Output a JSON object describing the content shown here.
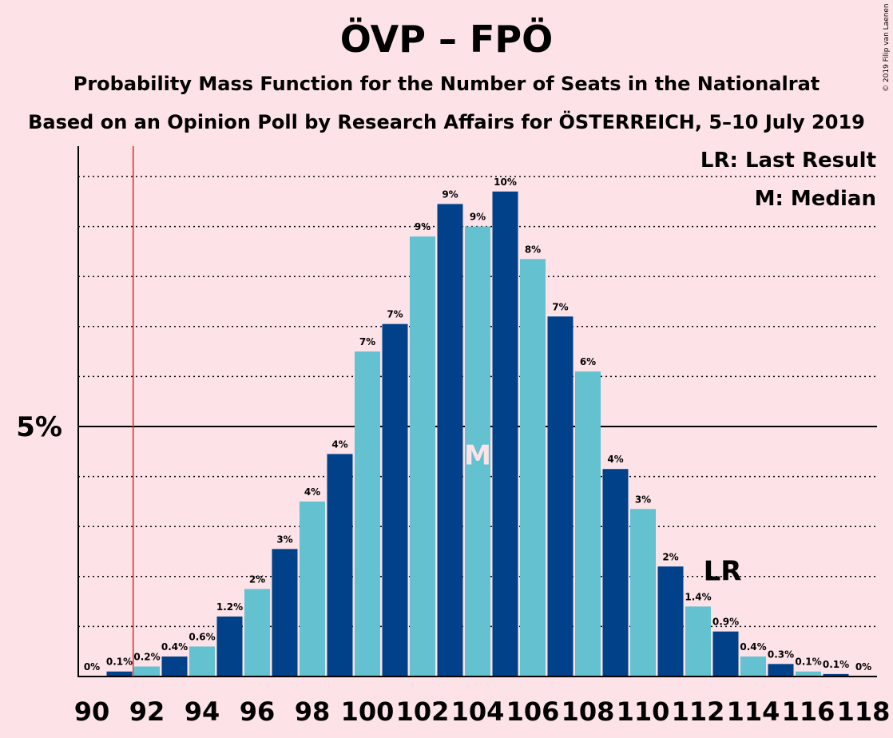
{
  "chart_data": {
    "type": "bar",
    "title": "ÖVP – FPÖ",
    "subtitle1": "Probability Mass Function for the Number of Seats in the Nationalrat",
    "subtitle2": "Based on an Opinion Poll by Research Affairs for ÖSTERREICH, 5–10 July 2019",
    "copyright": "© 2019 Filip van Laenen",
    "legend": {
      "lr": "LR: Last Result",
      "m": "M: Median"
    },
    "y_tick_label": "5%",
    "y_tick_value": 5,
    "ylim": [
      0,
      10.5
    ],
    "grid": true,
    "x": [
      90,
      91,
      92,
      93,
      94,
      95,
      96,
      97,
      98,
      99,
      100,
      101,
      102,
      103,
      104,
      105,
      106,
      107,
      108,
      109,
      110,
      111,
      112,
      113,
      114,
      115,
      116,
      117,
      118
    ],
    "x_tick_labels": [
      "90",
      "92",
      "94",
      "96",
      "98",
      "100",
      "102",
      "104",
      "106",
      "108",
      "110",
      "112",
      "114",
      "116",
      "118"
    ],
    "values": [
      0.0,
      0.1,
      0.2,
      0.4,
      0.6,
      1.2,
      1.75,
      2.55,
      3.5,
      4.45,
      6.5,
      7.05,
      8.8,
      9.45,
      9.0,
      9.7,
      8.35,
      7.2,
      6.1,
      4.15,
      3.35,
      2.2,
      1.4,
      0.9,
      0.4,
      0.25,
      0.1,
      0.05,
      0.0
    ],
    "labels": [
      "0%",
      "0.1%",
      "0.2%",
      "0.4%",
      "0.6%",
      "1.2%",
      "2%",
      "3%",
      "4%",
      "4%",
      "7%",
      "7%",
      "9%",
      "9%",
      "9%",
      "10%",
      "8%",
      "7%",
      "6%",
      "4%",
      "3%",
      "2%",
      "1.4%",
      "0.9%",
      "0.4%",
      "0.3%",
      "0.1%",
      "0.1%",
      "0%"
    ],
    "colors": {
      "dark": "#00418a",
      "light": "#63c1d0",
      "last_result_line": "#e0282c"
    },
    "last_result_seat": 91.5,
    "median_seat": 104,
    "median_marker": "M",
    "last_result_marker_seat": 113,
    "last_result_marker": "LR"
  }
}
